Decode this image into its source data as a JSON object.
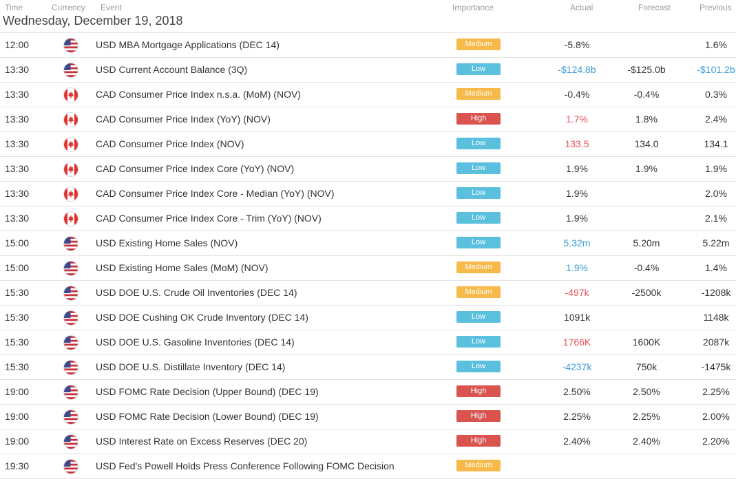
{
  "headers": {
    "time": "Time",
    "currency": "Currency",
    "event": "Event",
    "importance": "Importance",
    "actual": "Actual",
    "forecast": "Forecast",
    "previous": "Previous"
  },
  "date_title": "Wednesday, December 19, 2018",
  "colors": {
    "medium": "#f7b94a",
    "low": "#5bc0de",
    "high": "#d9534f",
    "positive": "#3a9ad9",
    "negative": "#e8535a",
    "neutral": "#333333"
  },
  "rows": [
    {
      "time": "12:00",
      "currency": "USD",
      "flag_icon": "us-flag-icon",
      "event": "USD MBA Mortgage Applications (DEC 14)",
      "importance": "Medium",
      "actual": "-5.8%",
      "actual_tone": "neutral",
      "forecast": "",
      "previous": "1.6%",
      "previous_tone": "neutral"
    },
    {
      "time": "13:30",
      "currency": "USD",
      "flag_icon": "us-flag-icon",
      "event": "USD Current Account Balance (3Q)",
      "importance": "Low",
      "actual": "-$124.8b",
      "actual_tone": "positive",
      "forecast": "-$125.0b",
      "previous": "-$101.2b",
      "previous_tone": "positive"
    },
    {
      "time": "13:30",
      "currency": "CAD",
      "flag_icon": "ca-flag-icon",
      "event": "CAD Consumer Price Index n.s.a. (MoM) (NOV)",
      "importance": "Medium",
      "actual": "-0.4%",
      "actual_tone": "neutral",
      "forecast": "-0.4%",
      "previous": "0.3%",
      "previous_tone": "neutral"
    },
    {
      "time": "13:30",
      "currency": "CAD",
      "flag_icon": "ca-flag-icon",
      "event": "CAD Consumer Price Index (YoY) (NOV)",
      "importance": "High",
      "actual": "1.7%",
      "actual_tone": "negative",
      "forecast": "1.8%",
      "previous": "2.4%",
      "previous_tone": "neutral"
    },
    {
      "time": "13:30",
      "currency": "CAD",
      "flag_icon": "ca-flag-icon",
      "event": "CAD Consumer Price Index (NOV)",
      "importance": "Low",
      "actual": "133.5",
      "actual_tone": "negative",
      "forecast": "134.0",
      "previous": "134.1",
      "previous_tone": "neutral"
    },
    {
      "time": "13:30",
      "currency": "CAD",
      "flag_icon": "ca-flag-icon",
      "event": "CAD Consumer Price Index Core (YoY) (NOV)",
      "importance": "Low",
      "actual": "1.9%",
      "actual_tone": "neutral",
      "forecast": "1.9%",
      "previous": "1.9%",
      "previous_tone": "neutral"
    },
    {
      "time": "13:30",
      "currency": "CAD",
      "flag_icon": "ca-flag-icon",
      "event": "CAD Consumer Price Index Core - Median (YoY) (NOV)",
      "importance": "Low",
      "actual": "1.9%",
      "actual_tone": "neutral",
      "forecast": "",
      "previous": "2.0%",
      "previous_tone": "neutral"
    },
    {
      "time": "13:30",
      "currency": "CAD",
      "flag_icon": "ca-flag-icon",
      "event": "CAD Consumer Price Index Core - Trim (YoY) (NOV)",
      "importance": "Low",
      "actual": "1.9%",
      "actual_tone": "neutral",
      "forecast": "",
      "previous": "2.1%",
      "previous_tone": "neutral"
    },
    {
      "time": "15:00",
      "currency": "USD",
      "flag_icon": "us-flag-icon",
      "event": "USD Existing Home Sales (NOV)",
      "importance": "Low",
      "actual": "5.32m",
      "actual_tone": "positive",
      "forecast": "5.20m",
      "previous": "5.22m",
      "previous_tone": "neutral"
    },
    {
      "time": "15:00",
      "currency": "USD",
      "flag_icon": "us-flag-icon",
      "event": "USD Existing Home Sales (MoM) (NOV)",
      "importance": "Medium",
      "actual": "1.9%",
      "actual_tone": "positive",
      "forecast": "-0.4%",
      "previous": "1.4%",
      "previous_tone": "neutral"
    },
    {
      "time": "15:30",
      "currency": "USD",
      "flag_icon": "us-flag-icon",
      "event": "USD DOE U.S. Crude Oil Inventories (DEC 14)",
      "importance": "Medium",
      "actual": "-497k",
      "actual_tone": "negative",
      "forecast": "-2500k",
      "previous": "-1208k",
      "previous_tone": "neutral"
    },
    {
      "time": "15:30",
      "currency": "USD",
      "flag_icon": "us-flag-icon",
      "event": "USD DOE Cushing OK Crude Inventory (DEC 14)",
      "importance": "Low",
      "actual": "1091k",
      "actual_tone": "neutral",
      "forecast": "",
      "previous": "1148k",
      "previous_tone": "neutral"
    },
    {
      "time": "15:30",
      "currency": "USD",
      "flag_icon": "us-flag-icon",
      "event": "USD DOE U.S. Gasoline Inventories (DEC 14)",
      "importance": "Low",
      "actual": "1766K",
      "actual_tone": "negative",
      "forecast": "1600K",
      "previous": "2087k",
      "previous_tone": "neutral"
    },
    {
      "time": "15:30",
      "currency": "USD",
      "flag_icon": "us-flag-icon",
      "event": "USD DOE U.S. Distillate Inventory (DEC 14)",
      "importance": "Low",
      "actual": "-4237k",
      "actual_tone": "positive",
      "forecast": "750k",
      "previous": "-1475k",
      "previous_tone": "neutral"
    },
    {
      "time": "19:00",
      "currency": "USD",
      "flag_icon": "us-flag-icon",
      "event": "USD FOMC Rate Decision (Upper Bound) (DEC 19)",
      "importance": "High",
      "actual": "2.50%",
      "actual_tone": "neutral",
      "forecast": "2.50%",
      "previous": "2.25%",
      "previous_tone": "neutral"
    },
    {
      "time": "19:00",
      "currency": "USD",
      "flag_icon": "us-flag-icon",
      "event": "USD FOMC Rate Decision (Lower Bound) (DEC 19)",
      "importance": "High",
      "actual": "2.25%",
      "actual_tone": "neutral",
      "forecast": "2.25%",
      "previous": "2.00%",
      "previous_tone": "neutral"
    },
    {
      "time": "19:00",
      "currency": "USD",
      "flag_icon": "us-flag-icon",
      "event": "USD Interest Rate on Excess Reserves (DEC 20)",
      "importance": "High",
      "actual": "2.40%",
      "actual_tone": "neutral",
      "forecast": "2.40%",
      "previous": "2.20%",
      "previous_tone": "neutral"
    },
    {
      "time": "19:30",
      "currency": "USD",
      "flag_icon": "us-flag-icon",
      "event": "USD Fed's Powell Holds Press Conference Following FOMC Decision",
      "importance": "Medium",
      "actual": "",
      "actual_tone": "neutral",
      "forecast": "",
      "previous": "",
      "previous_tone": "neutral"
    }
  ]
}
